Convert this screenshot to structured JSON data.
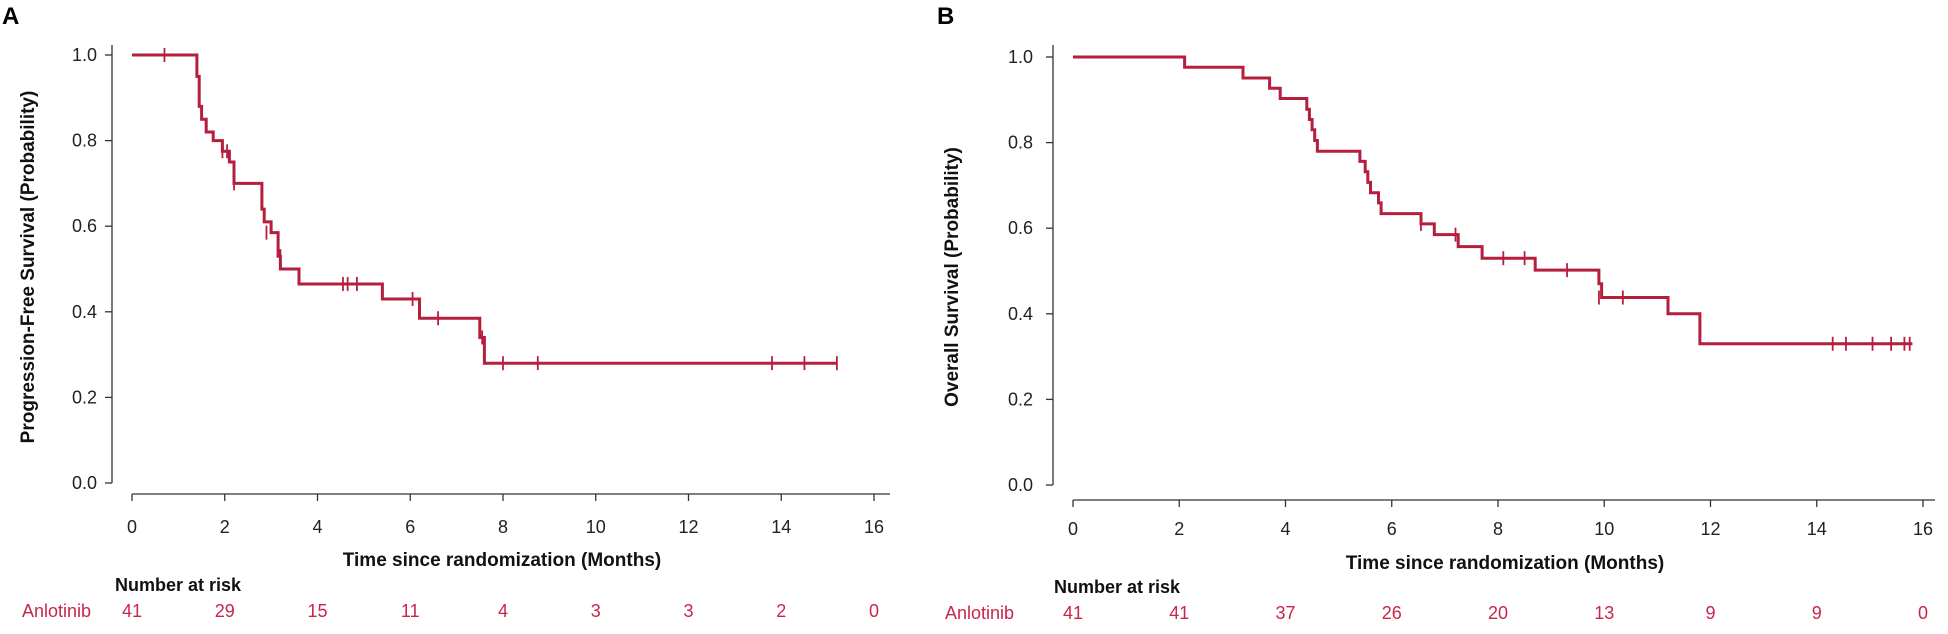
{
  "chart_data": [
    {
      "type": "line",
      "panel": "A",
      "title": "",
      "xlabel": "Time since randomization (Months)",
      "ylabel": "Progression-Free Survival (Probability)",
      "xlim": [
        0,
        16
      ],
      "ylim": [
        0,
        1
      ],
      "x_ticks": [
        "0",
        "2",
        "4",
        "6",
        "8",
        "10",
        "12",
        "14",
        "16"
      ],
      "y_ticks": [
        "0.0",
        "0.2",
        "0.4",
        "0.6",
        "0.8",
        "1.0"
      ],
      "series": [
        {
          "name": "Anlotinib",
          "color": "#b51f3c",
          "steps": [
            [
              0,
              1.0
            ],
            [
              1.4,
              0.95
            ],
            [
              1.45,
              0.88
            ],
            [
              1.5,
              0.85
            ],
            [
              1.6,
              0.82
            ],
            [
              1.75,
              0.8
            ],
            [
              1.95,
              0.775
            ],
            [
              2.1,
              0.75
            ],
            [
              2.2,
              0.7
            ],
            [
              2.8,
              0.64
            ],
            [
              2.85,
              0.61
            ],
            [
              3.0,
              0.585
            ],
            [
              3.15,
              0.53
            ],
            [
              3.2,
              0.5
            ],
            [
              3.6,
              0.465
            ],
            [
              5.4,
              0.43
            ],
            [
              6.2,
              0.385
            ],
            [
              7.5,
              0.34
            ],
            [
              7.6,
              0.28
            ],
            [
              15.2,
              0.28
            ]
          ],
          "censored": [
            [
              0.7,
              1.0
            ],
            [
              1.95,
              0.775
            ],
            [
              2.05,
              0.775
            ],
            [
              2.2,
              0.7
            ],
            [
              2.9,
              0.585
            ],
            [
              3.2,
              0.53
            ],
            [
              4.55,
              0.465
            ],
            [
              4.65,
              0.465
            ],
            [
              4.85,
              0.465
            ],
            [
              6.05,
              0.43
            ],
            [
              6.6,
              0.385
            ],
            [
              7.55,
              0.34
            ],
            [
              8.0,
              0.28
            ],
            [
              8.75,
              0.28
            ],
            [
              13.8,
              0.28
            ],
            [
              14.5,
              0.28
            ],
            [
              15.2,
              0.28
            ]
          ]
        }
      ],
      "risk_table": {
        "title": "Number at risk",
        "label": "Anlotinib",
        "values": [
          "41",
          "29",
          "15",
          "11",
          "4",
          "3",
          "3",
          "2",
          "0"
        ]
      }
    },
    {
      "type": "line",
      "panel": "B",
      "title": "",
      "xlabel": "Time since randomization (Months)",
      "ylabel": "Overall Survival (Probability)",
      "xlim": [
        0,
        16
      ],
      "ylim": [
        0,
        1
      ],
      "x_ticks": [
        "0",
        "2",
        "4",
        "6",
        "8",
        "10",
        "12",
        "14",
        "16"
      ],
      "y_ticks": [
        "0.0",
        "0.2",
        "0.4",
        "0.6",
        "0.8",
        "1.0"
      ],
      "series": [
        {
          "name": "Anlotinib",
          "color": "#b51f3c",
          "steps": [
            [
              0,
              1.0
            ],
            [
              2.1,
              0.976
            ],
            [
              3.2,
              0.951
            ],
            [
              3.7,
              0.927
            ],
            [
              3.9,
              0.903
            ],
            [
              4.4,
              0.878
            ],
            [
              4.45,
              0.854
            ],
            [
              4.5,
              0.83
            ],
            [
              4.55,
              0.805
            ],
            [
              4.6,
              0.78
            ],
            [
              5.4,
              0.756
            ],
            [
              5.5,
              0.732
            ],
            [
              5.55,
              0.707
            ],
            [
              5.6,
              0.683
            ],
            [
              5.75,
              0.659
            ],
            [
              5.8,
              0.634
            ],
            [
              6.55,
              0.61
            ],
            [
              6.8,
              0.585
            ],
            [
              7.25,
              0.557
            ],
            [
              7.7,
              0.53
            ],
            [
              8.7,
              0.502
            ],
            [
              9.9,
              0.47
            ],
            [
              9.95,
              0.438
            ],
            [
              11.2,
              0.4
            ],
            [
              11.8,
              0.33
            ],
            [
              15.8,
              0.33
            ]
          ],
          "censored": [
            [
              6.55,
              0.61
            ],
            [
              7.2,
              0.585
            ],
            [
              8.1,
              0.53
            ],
            [
              8.5,
              0.53
            ],
            [
              9.3,
              0.502
            ],
            [
              9.9,
              0.438
            ],
            [
              10.35,
              0.438
            ],
            [
              14.3,
              0.33
            ],
            [
              14.55,
              0.33
            ],
            [
              15.05,
              0.33
            ],
            [
              15.4,
              0.33
            ],
            [
              15.65,
              0.33
            ],
            [
              15.75,
              0.33
            ]
          ]
        }
      ],
      "risk_table": {
        "title": "Number at risk",
        "label": "Anlotinib",
        "values": [
          "41",
          "41",
          "37",
          "26",
          "20",
          "13",
          "9",
          "9",
          "0"
        ]
      }
    }
  ]
}
